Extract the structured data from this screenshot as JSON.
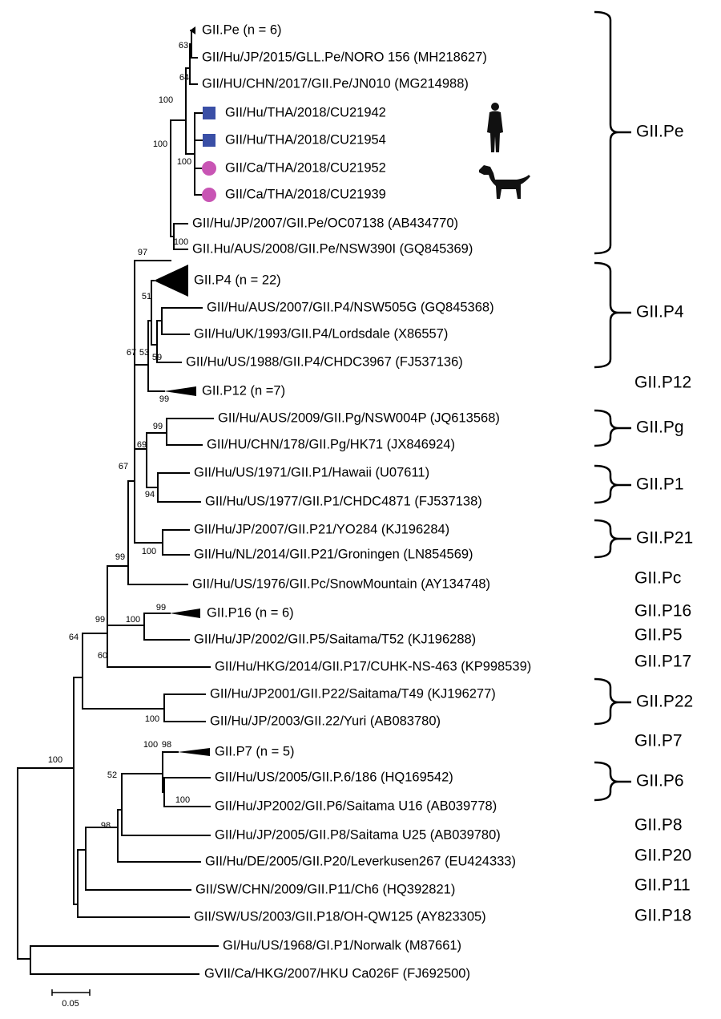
{
  "leaves": [
    "GII.Pe (n = 6)",
    "GII/Hu/JP/2015/GLL.Pe/NORO 156 (MH218627)",
    "GII/HU/CHN/2017/GII.Pe/JN010 (MG214988)",
    "GII/Hu/THA/2018/CU21942",
    "GII/Hu/THA/2018/CU21954",
    "GII/Ca/THA/2018/CU21952",
    "GII/Ca/THA/2018/CU21939",
    "GII/Hu/JP/2007/GII.Pe/OC07138 (AB434770)",
    "GII.Hu/AUS/2008/GII.Pe/NSW390I (GQ845369)",
    "GII.P4 (n = 22)",
    "GII/Hu/AUS/2007/GII.P4/NSW505G (GQ845368)",
    "GII/Hu/UK/1993/GII.P4/Lordsdale (X86557)",
    "GII/Hu/US/1988/GII.P4/CHDC3967 (FJ537136)",
    "GII.P12 (n =7)",
    "GII/Hu/AUS/2009/GII.Pg/NSW004P (JQ613568)",
    "GII/HU/CHN/178/GII.Pg/HK71 (JX846924)",
    "GII/Hu/US/1971/GII.P1/Hawaii (U07611)",
    "GII/Hu/US/1977/GII.P1/CHDC4871 (FJ537138)",
    "GII/Hu/JP/2007/GII.P21/YO284 (KJ196284)",
    "GII/Hu/NL/2014/GII.P21/Groningen (LN854569)",
    "GII/Hu/US/1976/GII.Pc/SnowMountain (AY134748)",
    "GII.P16 (n = 6)",
    "GII/Hu/JP/2002/GII.P5/Saitama/T52 (KJ196288)",
    "GII/Hu/HKG/2014/GII.P17/CUHK-NS-463 (KP998539)",
    "GII/Hu/JP2001/GII.P22/Saitama/T49 (KJ196277)",
    "GII/Hu/JP/2003/GII.22/Yuri (AB083780)",
    "GII.P7 (n = 5)",
    "GII/Hu/US/2005/GII.P.6/186 (HQ169542)",
    "GII/Hu/JP2002/GII.P6/Saitama U16 (AB039778)",
    "GII/Hu/JP/2005/GII.P8/Saitama U25 (AB039780)",
    "GII/Hu/DE/2005/GII.P20/Leverkusen267 (EU424333)",
    "GII/SW/CHN/2009/GII.P11/Ch6 (HQ392821)",
    "GII/SW/US/2003/GII.P18/OH-QW125 (AY823305)",
    "GI/Hu/US/1968/GI.P1/Norwalk (M87661)",
    "GVII/Ca/HKG/2007/HKU Ca026F (FJ692500)"
  ],
  "bootstrap": [
    63,
    64,
    100,
    100,
    100,
    100,
    97,
    51,
    67,
    53,
    59,
    99,
    99,
    69,
    94,
    67,
    100,
    99,
    99,
    100,
    99,
    60,
    64,
    100,
    98,
    100,
    52,
    100,
    98,
    100
  ],
  "clades": [
    "GII.Pe",
    "GII.P4",
    "GII.P12",
    "GII.Pg",
    "GII.P1",
    "GII.P21",
    "GII.Pc",
    "GII.P16",
    "GII.P5",
    "GII.P17",
    "GII.P22",
    "GII.P7",
    "GII.P6",
    "GII.P8",
    "GII.P20",
    "GII.P11",
    "GII.P18"
  ],
  "scale_bar": "0.05"
}
